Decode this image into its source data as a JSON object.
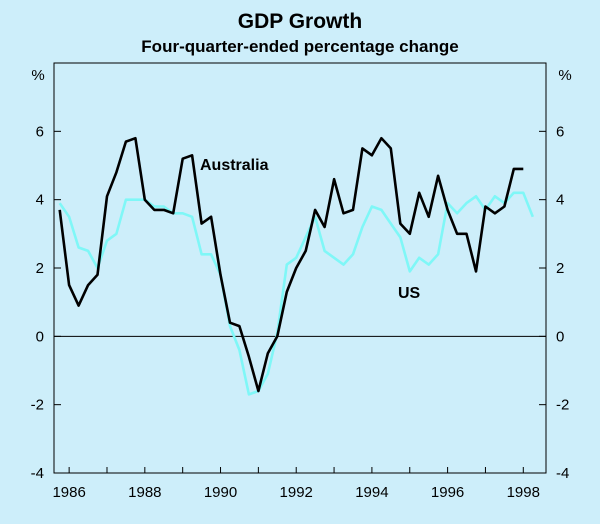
{
  "chart_data": {
    "type": "line",
    "title": "GDP Growth",
    "subtitle": "Four-quarter-ended percentage change",
    "ylabel_left": "%",
    "ylabel_right": "%",
    "ylim": [
      -4,
      8
    ],
    "y_ticks": [
      -4,
      -2,
      0,
      2,
      4,
      6
    ],
    "x_tick_labels": [
      "1986",
      "1988",
      "1990",
      "1992",
      "1994",
      "1996",
      "1998"
    ],
    "x_ticks": [
      1986,
      1988,
      1990,
      1992,
      1994,
      1996,
      1998
    ],
    "xlim": [
      1985.6,
      1998.6
    ],
    "grid": false,
    "colors": {
      "background": "#cdeefa",
      "australia": "#000000",
      "us": "#7ff7f7",
      "axis": "#000000"
    },
    "series": [
      {
        "name": "Australia",
        "label": "Australia",
        "x": [
          1985.75,
          1986.0,
          1986.25,
          1986.5,
          1986.75,
          1987.0,
          1987.25,
          1987.5,
          1987.75,
          1988.0,
          1988.25,
          1988.5,
          1988.75,
          1989.0,
          1989.25,
          1989.5,
          1989.75,
          1990.0,
          1990.25,
          1990.5,
          1990.75,
          1991.0,
          1991.25,
          1991.5,
          1991.75,
          1992.0,
          1992.25,
          1992.5,
          1992.75,
          1993.0,
          1993.25,
          1993.5,
          1993.75,
          1994.0,
          1994.25,
          1994.5,
          1994.75,
          1995.0,
          1995.25,
          1995.5,
          1995.75,
          1996.0,
          1996.25,
          1996.5,
          1996.75,
          1997.0,
          1997.25,
          1997.5,
          1997.75,
          1998.0
        ],
        "values": [
          3.7,
          1.5,
          0.9,
          1.5,
          1.8,
          4.1,
          4.8,
          5.7,
          5.8,
          4.0,
          3.7,
          3.7,
          3.6,
          5.2,
          5.3,
          3.3,
          3.5,
          1.8,
          0.4,
          0.3,
          -0.6,
          -1.6,
          -0.5,
          0.0,
          1.3,
          2.0,
          2.5,
          3.7,
          3.2,
          4.6,
          3.6,
          3.7,
          5.5,
          5.3,
          5.8,
          5.5,
          3.3,
          3.0,
          4.2,
          3.5,
          4.7,
          3.7,
          3.0,
          3.0,
          1.9,
          3.8,
          3.6,
          3.8,
          4.9,
          4.9
        ]
      },
      {
        "name": "US",
        "label": "US",
        "x": [
          1985.75,
          1986.0,
          1986.25,
          1986.5,
          1986.75,
          1987.0,
          1987.25,
          1987.5,
          1987.75,
          1988.0,
          1988.25,
          1988.5,
          1988.75,
          1989.0,
          1989.25,
          1989.5,
          1989.75,
          1990.0,
          1990.25,
          1990.5,
          1990.75,
          1991.0,
          1991.25,
          1991.5,
          1991.75,
          1992.0,
          1992.25,
          1992.5,
          1992.75,
          1993.0,
          1993.25,
          1993.5,
          1993.75,
          1994.0,
          1994.25,
          1994.5,
          1994.75,
          1995.0,
          1995.25,
          1995.5,
          1995.75,
          1996.0,
          1996.25,
          1996.5,
          1996.75,
          1997.0,
          1997.25,
          1997.5,
          1997.75,
          1998.0,
          1998.25
        ],
        "values": [
          3.9,
          3.5,
          2.6,
          2.5,
          2.0,
          2.8,
          3.0,
          4.0,
          4.0,
          4.0,
          3.8,
          3.8,
          3.6,
          3.6,
          3.5,
          2.4,
          2.4,
          1.8,
          0.3,
          -0.4,
          -1.7,
          -1.6,
          -1.1,
          0.1,
          2.1,
          2.3,
          2.9,
          3.5,
          2.5,
          2.3,
          2.1,
          2.4,
          3.2,
          3.8,
          3.7,
          3.3,
          2.9,
          1.9,
          2.3,
          2.1,
          2.4,
          3.9,
          3.6,
          3.9,
          4.1,
          3.7,
          4.1,
          3.9,
          4.2,
          4.2,
          3.5
        ]
      }
    ]
  }
}
